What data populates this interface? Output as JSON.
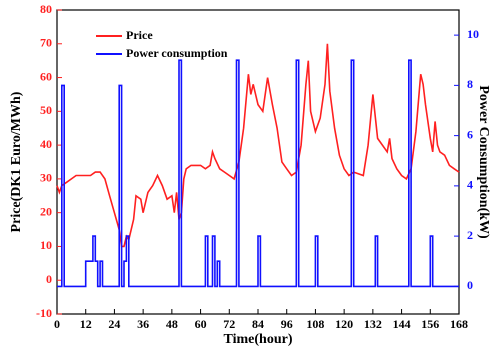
{
  "chart_data": {
    "type": "line",
    "xlabel": "Time(hour)",
    "ylabel": "Price(DK1 Euro/MWh)",
    "y2label": "Power Consumption(kW)",
    "xlim": [
      0,
      168
    ],
    "xticks": [
      0,
      12,
      24,
      36,
      48,
      60,
      72,
      84,
      96,
      108,
      120,
      132,
      144,
      156,
      168
    ],
    "ylim": [
      -10,
      80
    ],
    "yticks": [
      -10,
      0,
      10,
      20,
      30,
      40,
      50,
      60,
      70,
      80
    ],
    "y2lim": [
      -1.1,
      11
    ],
    "y2ticks": [
      0,
      2,
      4,
      6,
      8,
      10
    ],
    "legend": "upper left",
    "series": [
      {
        "name": "Price",
        "color": "#ff2020",
        "x": [
          0,
          1,
          2,
          4,
          6,
          8,
          10,
          12,
          14,
          16,
          18,
          20,
          22,
          24,
          26,
          27,
          28,
          29,
          30,
          32,
          33,
          35,
          36,
          38,
          40,
          42,
          44,
          46,
          48,
          49,
          50,
          51,
          52,
          53,
          54,
          56,
          60,
          62,
          64,
          65,
          66,
          68,
          70,
          72,
          74,
          76,
          78,
          80,
          81,
          82,
          84,
          86,
          88,
          90,
          92,
          94,
          96,
          98,
          100,
          102,
          104,
          105,
          106,
          108,
          110,
          112,
          113,
          114,
          116,
          118,
          120,
          122,
          124,
          128,
          130,
          132,
          134,
          136,
          138,
          139,
          140,
          142,
          144,
          146,
          148,
          150,
          152,
          153,
          154,
          156,
          157,
          158,
          159,
          160,
          162,
          164,
          166,
          168
        ],
        "values": [
          28,
          26,
          28,
          29,
          30,
          31,
          31,
          31,
          31,
          32,
          32,
          30,
          25,
          20,
          15,
          10,
          10,
          13,
          12,
          18,
          25,
          24,
          20,
          26,
          28,
          31,
          28,
          24,
          25,
          20,
          26,
          18,
          20,
          30,
          33,
          34,
          34,
          33,
          34,
          38,
          36,
          33,
          32,
          31,
          30,
          35,
          45,
          61,
          55,
          58,
          52,
          50,
          60,
          52,
          45,
          35,
          33,
          31,
          32,
          40,
          58,
          65,
          50,
          44,
          48,
          58,
          70,
          56,
          45,
          37,
          33,
          31,
          32,
          31,
          40,
          55,
          42,
          40,
          38,
          42,
          36,
          33,
          31,
          30,
          33,
          44,
          61,
          58,
          52,
          42,
          38,
          47,
          40,
          38,
          37,
          34,
          33,
          32
        ]
      },
      {
        "name": "Power consumption",
        "color": "#1010ff",
        "axis": "y2",
        "x": [
          0,
          2,
          2,
          3,
          3,
          12,
          12,
          15,
          15,
          16,
          16,
          17,
          17,
          18,
          18,
          19,
          19,
          26,
          26,
          27,
          27,
          28,
          28,
          29,
          29,
          30,
          30,
          51,
          51,
          52,
          52,
          62,
          62,
          63,
          63,
          65,
          65,
          66,
          66,
          67,
          67,
          68,
          68,
          75,
          75,
          76,
          76,
          84,
          84,
          85,
          85,
          100,
          100,
          101,
          101,
          108,
          108,
          109,
          109,
          123,
          123,
          124,
          124,
          133,
          133,
          134,
          134,
          147,
          147,
          148,
          148,
          156,
          156,
          157,
          157,
          168
        ],
        "values": [
          0,
          0,
          8,
          8,
          0,
          0,
          1,
          1,
          2,
          2,
          1,
          1,
          0,
          0,
          1,
          1,
          0,
          0,
          8,
          8,
          0,
          0,
          1,
          1,
          2,
          2,
          0,
          0,
          9,
          9,
          0,
          0,
          2,
          2,
          0,
          0,
          2,
          2,
          0,
          0,
          1,
          1,
          0,
          0,
          9,
          9,
          0,
          0,
          2,
          2,
          0,
          0,
          9,
          9,
          0,
          0,
          2,
          2,
          0,
          0,
          9,
          9,
          0,
          0,
          2,
          2,
          0,
          0,
          9,
          9,
          0,
          0,
          2,
          2,
          0,
          0
        ]
      }
    ]
  }
}
